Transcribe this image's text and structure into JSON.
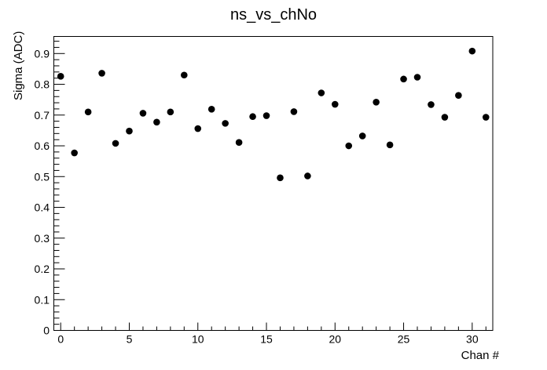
{
  "window": {
    "background": "#ffffff"
  },
  "chart_data": {
    "type": "scatter",
    "title": "ns_vs_chNo",
    "xlabel": "Chan #",
    "ylabel": "Sigma (ADC)",
    "xlim": [
      -0.5,
      31.5
    ],
    "ylim": [
      0,
      0.9555
    ],
    "grid": false,
    "legend": false,
    "frame_color": "#000000",
    "background": "#ffffff",
    "marker": {
      "shape": "filled-circle",
      "color": "#000000",
      "radius_px": 4.3
    },
    "x": [
      0,
      1,
      2,
      3,
      4,
      5,
      6,
      7,
      8,
      9,
      10,
      11,
      12,
      13,
      14,
      15,
      16,
      17,
      18,
      19,
      20,
      21,
      22,
      23,
      24,
      25,
      26,
      27,
      28,
      29,
      30,
      31
    ],
    "y": [
      0.826,
      0.577,
      0.71,
      0.836,
      0.608,
      0.648,
      0.706,
      0.677,
      0.71,
      0.83,
      0.656,
      0.719,
      0.673,
      0.611,
      0.695,
      0.698,
      0.496,
      0.711,
      0.502,
      0.772,
      0.735,
      0.6,
      0.632,
      0.742,
      0.603,
      0.817,
      0.823,
      0.734,
      0.693,
      0.764,
      0.908,
      0.693
    ],
    "x_ticks": {
      "values": [
        0,
        5,
        10,
        15,
        20,
        25,
        30
      ],
      "labels": [
        "0",
        "5",
        "10",
        "15",
        "20",
        "25",
        "30"
      ],
      "minor_step": 1
    },
    "y_ticks": {
      "values": [
        0,
        0.1,
        0.2,
        0.3,
        0.4,
        0.5,
        0.6,
        0.7,
        0.8,
        0.9
      ],
      "labels": [
        "0",
        "0.1",
        "0.2",
        "0.3",
        "0.4",
        "0.5",
        "0.6",
        "0.7",
        "0.8",
        "0.9"
      ],
      "minor_step": 0.02
    }
  }
}
